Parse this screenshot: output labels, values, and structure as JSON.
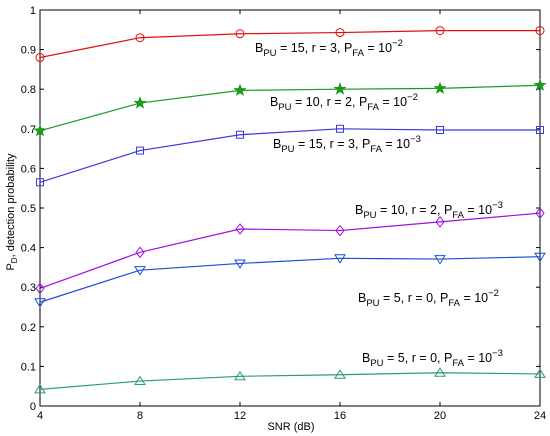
{
  "chart_data": {
    "type": "line",
    "title": "",
    "xlabel": "SNR (dB)",
    "ylabel_main": "P",
    "ylabel_sub": "D",
    "ylabel_rest": ", detection probability",
    "x": [
      4,
      8,
      12,
      16,
      20,
      24
    ],
    "xlim": [
      4,
      24
    ],
    "ylim": [
      0,
      1
    ],
    "x_ticks": [
      "4",
      "8",
      "12",
      "16",
      "20",
      "24"
    ],
    "y_ticks": [
      "0",
      "0.1",
      "0.2",
      "0.3",
      "0.4",
      "0.5",
      "0.6",
      "0.7",
      "0.8",
      "0.9",
      "1"
    ],
    "grid": false,
    "legend": "none",
    "series": [
      {
        "id": "bpu15-r3-pfa1e-2",
        "color": "#e01010",
        "marker": "circle",
        "values": [
          0.88,
          0.93,
          0.94,
          0.943,
          0.948,
          0.948
        ],
        "label": {
          "b": "B",
          "b_sub": "PU",
          "pre": " = 15, r = 3, P",
          "p_sub": "FA",
          "mid": " = 10",
          "exp": "−2"
        }
      },
      {
        "id": "bpu10-r2-pfa1e-2",
        "color": "#1f9a1f",
        "marker": "star",
        "values": [
          0.695,
          0.765,
          0.797,
          0.8,
          0.802,
          0.81
        ],
        "label": {
          "b": "B",
          "b_sub": "PU",
          "pre": " = 10, r = 2, P",
          "p_sub": "FA",
          "mid": " = 10",
          "exp": "−2"
        }
      },
      {
        "id": "bpu15-r3-pfa1e-3",
        "color": "#3a3ae0",
        "marker": "square",
        "values": [
          0.565,
          0.645,
          0.685,
          0.7,
          0.697,
          0.697
        ],
        "label": {
          "b": "B",
          "b_sub": "PU",
          "pre": " = 15, r = 3, P",
          "p_sub": "FA",
          "mid": " = 10",
          "exp": "−3"
        }
      },
      {
        "id": "bpu10-r2-pfa1e-3",
        "color": "#a010e0",
        "marker": "diamond",
        "values": [
          0.297,
          0.388,
          0.447,
          0.443,
          0.465,
          0.487
        ],
        "label": {
          "b": "B",
          "b_sub": "PU",
          "pre": " = 10, r = 2, P",
          "p_sub": "FA",
          "mid": " = 10",
          "exp": "−3"
        }
      },
      {
        "id": "bpu5-r0-pfa1e-2",
        "color": "#1a4fd8",
        "marker": "triangle-down",
        "values": [
          0.262,
          0.343,
          0.36,
          0.373,
          0.371,
          0.377
        ],
        "label": {
          "b": "B",
          "b_sub": "PU",
          "pre": " = 5, r = 0, P",
          "p_sub": "FA",
          "mid": " = 10",
          "exp": "−2"
        }
      },
      {
        "id": "bpu5-r0-pfa1e-3",
        "color": "#2e9a7a",
        "marker": "triangle-up",
        "values": [
          0.042,
          0.063,
          0.075,
          0.079,
          0.084,
          0.081
        ],
        "label": {
          "b": "B",
          "b_sub": "PU",
          "pre": " = 5, r = 0, P",
          "p_sub": "FA",
          "mid": " = 10",
          "exp": "−3"
        }
      }
    ]
  }
}
